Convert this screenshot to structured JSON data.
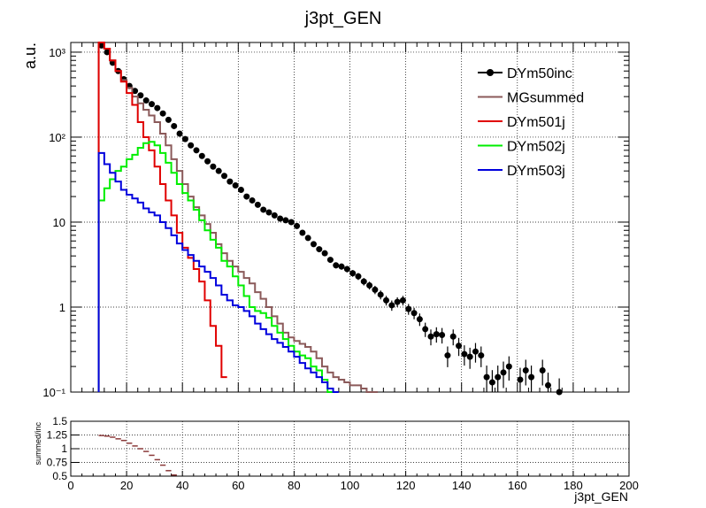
{
  "title": "j3pt_GEN",
  "chart_data": [
    {
      "type": "line",
      "title": "j3pt_GEN",
      "ylabel": "a.u.",
      "yscale": "log",
      "ylim": [
        0.1,
        1300
      ],
      "xlim": [
        0,
        200
      ],
      "grid": true,
      "legend_position": "top-right",
      "y_ticks": [
        {
          "value": 0.1,
          "label": "10⁻¹"
        },
        {
          "value": 1,
          "label": "1"
        },
        {
          "value": 10,
          "label": "10"
        },
        {
          "value": 100,
          "label": "10²"
        },
        {
          "value": 1000,
          "label": "10³"
        }
      ],
      "colors": {
        "DYm50inc": "#000000",
        "MGsummed": "#8b5a5a",
        "DYm501j": "#e00000",
        "DYm502j": "#00ee00",
        "DYm503j": "#0000dd"
      },
      "series": [
        {
          "name": "DYm50inc",
          "style": "markers",
          "x": [
            11,
            13,
            15,
            17,
            19,
            21,
            23,
            25,
            27,
            29,
            31,
            33,
            35,
            37,
            39,
            41,
            43,
            45,
            47,
            49,
            51,
            53,
            55,
            57,
            59,
            61,
            63,
            65,
            67,
            69,
            71,
            73,
            75,
            77,
            79,
            81,
            83,
            85,
            87,
            89,
            91,
            93,
            95,
            97,
            99,
            101,
            103,
            105,
            107,
            109,
            111,
            113,
            115,
            117,
            119,
            121,
            123,
            125,
            127,
            129,
            131,
            133,
            135,
            137,
            139,
            141,
            143,
            145,
            147,
            149,
            151,
            153,
            155,
            157,
            159,
            161,
            163,
            165,
            167,
            169,
            171,
            173,
            175
          ],
          "y": [
            1200,
            1000,
            750,
            600,
            480,
            400,
            350,
            310,
            270,
            245,
            220,
            190,
            160,
            135,
            110,
            95,
            80,
            70,
            60,
            52,
            45,
            40,
            35,
            30,
            27,
            24,
            20,
            18,
            16,
            14,
            13,
            12,
            11,
            10.5,
            10,
            9,
            7.5,
            6.5,
            5.5,
            4.8,
            4.3,
            3.6,
            3.1,
            3.0,
            2.8,
            2.5,
            2.3,
            2.0,
            1.8,
            1.6,
            1.4,
            1.2,
            1.05,
            1.15,
            1.2,
            0.95,
            0.85,
            0.72,
            0.55,
            0.45,
            0.48,
            0.47,
            0.27,
            0.45,
            0.35,
            0.28,
            0.26,
            0.3,
            0.27,
            0.15,
            0.13,
            0.15,
            0.17,
            0.2,
            null,
            0.14,
            0.18,
            0.15,
            null,
            0.18,
            0.12,
            null,
            0.1
          ]
        },
        {
          "name": "MGsummed",
          "style": "step",
          "x": [
            11,
            13,
            15,
            17,
            19,
            21,
            23,
            25,
            27,
            29,
            31,
            33,
            35,
            37,
            39,
            41,
            43,
            45,
            47,
            49,
            51,
            53,
            55,
            57,
            59,
            61,
            63,
            65,
            67,
            69,
            71,
            73,
            75,
            77,
            79,
            81,
            83,
            85,
            87,
            89,
            91,
            93,
            95,
            97,
            99,
            101,
            103,
            105,
            107,
            109
          ],
          "y": [
            1300,
            1100,
            800,
            600,
            470,
            380,
            300,
            250,
            210,
            180,
            150,
            110,
            80,
            55,
            40,
            28,
            20,
            15,
            12,
            9.5,
            7.5,
            5.5,
            4.3,
            3.5,
            3.0,
            2.6,
            2.2,
            1.9,
            1.5,
            1.25,
            1.0,
            0.78,
            0.64,
            0.5,
            0.44,
            0.4,
            0.37,
            0.34,
            0.3,
            0.25,
            0.2,
            0.17,
            0.15,
            0.14,
            0.13,
            0.12,
            0.12,
            0.11,
            0.1,
            0.1
          ]
        },
        {
          "name": "DYm501j",
          "style": "step",
          "x": [
            11,
            13,
            15,
            17,
            19,
            21,
            23,
            25,
            27,
            29,
            31,
            33,
            35,
            37,
            39,
            41,
            43,
            45,
            47,
            49,
            51,
            53,
            55
          ],
          "y": [
            1300,
            1100,
            800,
            600,
            450,
            330,
            240,
            150,
            100,
            70,
            45,
            28,
            18,
            12,
            7.5,
            5,
            3.8,
            2.8,
            2.0,
            1.2,
            0.6,
            0.35,
            0.15
          ]
        },
        {
          "name": "DYm502j",
          "style": "step",
          "x": [
            11,
            13,
            15,
            17,
            19,
            21,
            23,
            25,
            27,
            29,
            31,
            33,
            35,
            37,
            39,
            41,
            43,
            45,
            47,
            49,
            51,
            53,
            55,
            57,
            59,
            61,
            63,
            65,
            67,
            69,
            71,
            73,
            75,
            77,
            79,
            81,
            83,
            85,
            87,
            89,
            91,
            93
          ],
          "y": [
            18,
            25,
            32,
            40,
            45,
            55,
            62,
            75,
            85,
            88,
            80,
            65,
            50,
            38,
            28,
            22,
            18,
            14,
            10.5,
            8,
            6.2,
            5,
            3.5,
            3.0,
            2.3,
            1.8,
            1.35,
            1.0,
            0.9,
            0.85,
            0.75,
            0.6,
            0.5,
            0.42,
            0.35,
            0.3,
            0.27,
            0.25,
            0.2,
            0.18,
            0.14,
            0.1
          ]
        },
        {
          "name": "DYm503j",
          "style": "step",
          "x": [
            11,
            13,
            15,
            17,
            19,
            21,
            23,
            25,
            27,
            29,
            31,
            33,
            35,
            37,
            39,
            41,
            43,
            45,
            47,
            49,
            51,
            53,
            55,
            57,
            59,
            61,
            63,
            65,
            67,
            69,
            71,
            73,
            75,
            77,
            79,
            81,
            83,
            85,
            87,
            89,
            91,
            93,
            95
          ],
          "y": [
            65,
            48,
            38,
            30,
            24,
            21,
            19,
            17,
            14.5,
            13,
            12,
            10,
            8.5,
            7,
            5.6,
            4.7,
            4.1,
            3.5,
            3.0,
            2.6,
            2.2,
            1.8,
            1.4,
            1.2,
            1.05,
            1.0,
            0.9,
            0.78,
            0.64,
            0.55,
            0.48,
            0.42,
            0.38,
            0.34,
            0.3,
            0.26,
            0.22,
            0.19,
            0.17,
            0.15,
            0.13,
            0.11,
            0.1
          ]
        }
      ]
    },
    {
      "type": "scatter",
      "ylabel": "summed/inc",
      "xlabel": "j3pt_GEN",
      "xlim": [
        0,
        200
      ],
      "ylim": [
        0.5,
        1.5
      ],
      "grid": true,
      "x_ticks": [
        0,
        20,
        40,
        60,
        80,
        100,
        120,
        140,
        160,
        180,
        200
      ],
      "y_ticks": [
        {
          "value": 0.5,
          "label": "0.5"
        },
        {
          "value": 0.75,
          "label": "0.75"
        },
        {
          "value": 1,
          "label": "1"
        },
        {
          "value": 1.25,
          "label": "1.25"
        },
        {
          "value": 1.5,
          "label": "1.5"
        }
      ],
      "series": [
        {
          "x": [
            11,
            13,
            15,
            17,
            19,
            21,
            23,
            25,
            27,
            29,
            31,
            33,
            35,
            37
          ],
          "y": [
            1.24,
            1.23,
            1.21,
            1.18,
            1.15,
            1.1,
            1.05,
            1.0,
            0.95,
            0.88,
            0.8,
            0.7,
            0.6,
            0.52
          ]
        }
      ]
    }
  ]
}
